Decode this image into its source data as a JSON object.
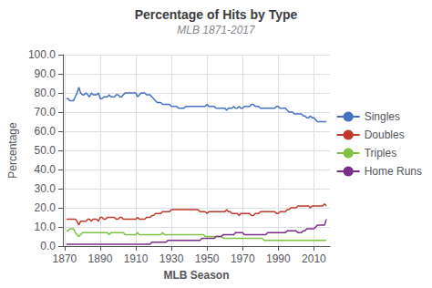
{
  "chart_data": {
    "type": "line",
    "title": "Percentage of Hits by Type",
    "subtitle": "MLB 1871-2017",
    "xlabel": "MLB Season",
    "ylabel": "Percentage",
    "x": [
      1871,
      1872,
      1873,
      1874,
      1875,
      1876,
      1877,
      1878,
      1879,
      1880,
      1881,
      1882,
      1883,
      1884,
      1885,
      1886,
      1887,
      1888,
      1889,
      1890,
      1891,
      1892,
      1893,
      1894,
      1895,
      1896,
      1897,
      1898,
      1899,
      1900,
      1901,
      1902,
      1903,
      1904,
      1905,
      1906,
      1907,
      1908,
      1909,
      1910,
      1911,
      1912,
      1913,
      1914,
      1915,
      1916,
      1917,
      1918,
      1919,
      1920,
      1921,
      1922,
      1923,
      1924,
      1925,
      1926,
      1927,
      1928,
      1929,
      1930,
      1931,
      1932,
      1933,
      1934,
      1935,
      1936,
      1937,
      1938,
      1939,
      1940,
      1941,
      1942,
      1943,
      1944,
      1945,
      1946,
      1947,
      1948,
      1949,
      1950,
      1951,
      1952,
      1953,
      1954,
      1955,
      1956,
      1957,
      1958,
      1959,
      1960,
      1961,
      1962,
      1963,
      1964,
      1965,
      1966,
      1967,
      1968,
      1969,
      1970,
      1971,
      1972,
      1973,
      1974,
      1975,
      1976,
      1977,
      1978,
      1979,
      1980,
      1981,
      1982,
      1983,
      1984,
      1985,
      1986,
      1987,
      1988,
      1989,
      1990,
      1991,
      1992,
      1993,
      1994,
      1995,
      1996,
      1997,
      1998,
      1999,
      2000,
      2001,
      2002,
      2003,
      2004,
      2005,
      2006,
      2007,
      2008,
      2009,
      2010,
      2011,
      2012,
      2013,
      2014,
      2015,
      2016,
      2017
    ],
    "series": [
      {
        "name": "Singles",
        "color": "#4472c4",
        "values": [
          77,
          77,
          76,
          76,
          76,
          78,
          80,
          83,
          80,
          79,
          79,
          80,
          79,
          78,
          80,
          79,
          79,
          79,
          80,
          77,
          77,
          78,
          78,
          78,
          79,
          78,
          78,
          78,
          79,
          79,
          78,
          78,
          79,
          80,
          80,
          80,
          80,
          80,
          80,
          80,
          78,
          79,
          80,
          80,
          80,
          79,
          79,
          79,
          78,
          77,
          76,
          75,
          75,
          75,
          74,
          74,
          74,
          74,
          74,
          73,
          73,
          73,
          73,
          72,
          72,
          72,
          72,
          73,
          73,
          73,
          73,
          73,
          73,
          73,
          73,
          73,
          73,
          73,
          73,
          74,
          73,
          73,
          73,
          73,
          72,
          72,
          72,
          72,
          72,
          72,
          71,
          72,
          72,
          72,
          73,
          72,
          72,
          73,
          72,
          72,
          73,
          73,
          73,
          73,
          74,
          74,
          73,
          73,
          73,
          72,
          72,
          72,
          72,
          72,
          72,
          72,
          72,
          72,
          73,
          73,
          72,
          72,
          72,
          72,
          71,
          70,
          70,
          70,
          69,
          69,
          69,
          69,
          69,
          68,
          68,
          67,
          67,
          68,
          67,
          67,
          66,
          65,
          65,
          65,
          65,
          65,
          65
        ]
      },
      {
        "name": "Doubles",
        "color": "#c0392b",
        "values": [
          14,
          14,
          14,
          14,
          14,
          14,
          13,
          11,
          13,
          13,
          13,
          13,
          14,
          14,
          13,
          14,
          14,
          14,
          13,
          15,
          15,
          14,
          14,
          15,
          15,
          15,
          15,
          15,
          14,
          14,
          15,
          15,
          14,
          14,
          14,
          14,
          14,
          14,
          14,
          14,
          15,
          14,
          14,
          14,
          14,
          15,
          15,
          15,
          16,
          16,
          17,
          17,
          17,
          17,
          18,
          18,
          18,
          18,
          18,
          19,
          19,
          19,
          19,
          19,
          19,
          19,
          19,
          19,
          19,
          19,
          19,
          19,
          19,
          19,
          19,
          18,
          18,
          18,
          18,
          17,
          18,
          18,
          18,
          18,
          18,
          18,
          18,
          18,
          18,
          18,
          19,
          18,
          18,
          17,
          17,
          17,
          17,
          16,
          17,
          17,
          17,
          17,
          17,
          17,
          16,
          16,
          17,
          17,
          17,
          18,
          18,
          18,
          18,
          18,
          18,
          18,
          18,
          18,
          17,
          17,
          18,
          18,
          18,
          18,
          19,
          19,
          20,
          20,
          20,
          20,
          21,
          21,
          21,
          21,
          21,
          21,
          21,
          20,
          21,
          21,
          21,
          21,
          21,
          21,
          21,
          22,
          21
        ]
      },
      {
        "name": "Triples",
        "color": "#7dc242",
        "values": [
          8,
          8,
          9,
          9,
          9,
          7,
          6,
          5,
          6,
          7,
          7,
          7,
          7,
          7,
          7,
          7,
          7,
          7,
          7,
          7,
          7,
          7,
          7,
          7,
          6,
          7,
          7,
          7,
          7,
          7,
          7,
          7,
          7,
          6,
          6,
          6,
          6,
          6,
          6,
          6,
          7,
          6,
          6,
          6,
          6,
          6,
          6,
          6,
          6,
          6,
          6,
          6,
          6,
          6,
          7,
          6,
          6,
          6,
          6,
          6,
          6,
          6,
          6,
          6,
          6,
          6,
          6,
          6,
          6,
          6,
          6,
          6,
          6,
          6,
          6,
          6,
          6,
          6,
          5,
          5,
          5,
          5,
          5,
          5,
          5,
          5,
          5,
          5,
          4,
          4,
          4,
          4,
          4,
          4,
          4,
          4,
          4,
          4,
          4,
          4,
          4,
          4,
          4,
          4,
          4,
          4,
          4,
          4,
          4,
          4,
          4,
          3,
          3,
          3,
          3,
          3,
          3,
          3,
          3,
          3,
          3,
          3,
          3,
          3,
          3,
          3,
          3,
          3,
          3,
          3,
          3,
          3,
          3,
          3,
          3,
          3,
          3,
          3,
          3,
          3,
          3,
          3,
          3,
          3,
          3,
          3,
          3
        ]
      },
      {
        "name": "Home Runs",
        "color": "#7b2d8b",
        "values": [
          1,
          1,
          1,
          1,
          1,
          1,
          1,
          1,
          1,
          1,
          1,
          1,
          1,
          1,
          1,
          1,
          1,
          1,
          1,
          1,
          1,
          1,
          1,
          1,
          1,
          1,
          1,
          1,
          1,
          1,
          1,
          1,
          1,
          1,
          1,
          1,
          1,
          1,
          1,
          1,
          1,
          1,
          1,
          1,
          1,
          1,
          1,
          1,
          2,
          2,
          2,
          2,
          2,
          2,
          2,
          2,
          2,
          3,
          3,
          3,
          3,
          3,
          3,
          3,
          3,
          3,
          3,
          3,
          3,
          3,
          3,
          3,
          3,
          3,
          3,
          3,
          4,
          4,
          4,
          4,
          4,
          4,
          4,
          4,
          5,
          5,
          5,
          5,
          6,
          6,
          6,
          6,
          6,
          6,
          6,
          7,
          7,
          7,
          7,
          7,
          6,
          6,
          6,
          6,
          6,
          6,
          6,
          6,
          6,
          6,
          6,
          6,
          6,
          7,
          7,
          7,
          7,
          7,
          7,
          7,
          7,
          7,
          7,
          7,
          8,
          8,
          8,
          8,
          8,
          8,
          7,
          7,
          7,
          8,
          8,
          9,
          9,
          9,
          9,
          9,
          10,
          11,
          11,
          11,
          11,
          11,
          14
        ]
      }
    ],
    "xlim": [
      1869,
      2019
    ],
    "xticks": [
      1870,
      1890,
      1910,
      1930,
      1950,
      1970,
      1990,
      2010
    ],
    "ylim": [
      0.0,
      100.0
    ],
    "yticks": [
      {
        "value": 0,
        "label": "0.0"
      },
      {
        "value": 10,
        "label": "10.0"
      },
      {
        "value": 20,
        "label": "20.0"
      },
      {
        "value": 30,
        "label": "30.0"
      },
      {
        "value": 40,
        "label": "40.0"
      },
      {
        "value": 50,
        "label": "50.0"
      },
      {
        "value": 60,
        "label": "60.0"
      },
      {
        "value": 70,
        "label": "70.0"
      },
      {
        "value": 80,
        "label": "80.0"
      },
      {
        "value": 90,
        "label": "90.0"
      },
      {
        "value": 100,
        "label": "100.0"
      }
    ],
    "grid": true,
    "legend": "right"
  }
}
